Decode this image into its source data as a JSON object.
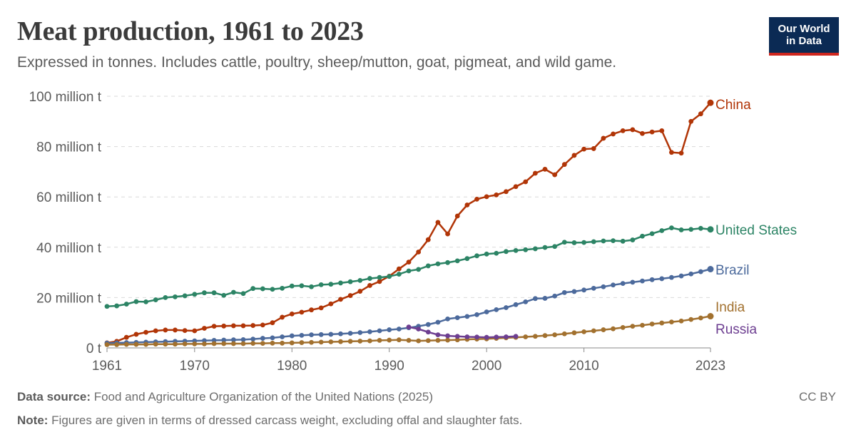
{
  "header": {
    "title": "Meat production, 1961 to 2023",
    "subtitle": "Expressed in tonnes. Includes cattle, poultry, sheep/mutton, goat, pigmeat, and wild game."
  },
  "logo": {
    "line1": "Our World",
    "line2": "in Data",
    "bg_color": "#0b2a54",
    "accent_color": "#ce261e"
  },
  "footer": {
    "source_label": "Data source:",
    "source_text": " Food and Agriculture Organization of the United Nations (2025)",
    "note_label": "Note:",
    "note_text": " Figures are given in terms of dressed carcass weight, excluding offal and slaughter fats.",
    "license": "CC BY"
  },
  "chart_data": {
    "type": "line",
    "xlim": [
      1961,
      2023
    ],
    "ylim": [
      0,
      100
    ],
    "y_unit": "million t",
    "x_ticks": [
      1961,
      1970,
      1980,
      1990,
      2000,
      2010,
      2023
    ],
    "y_ticks": [
      {
        "value": 0,
        "label": "0 t"
      },
      {
        "value": 20,
        "label": "20 million t"
      },
      {
        "value": 40,
        "label": "40 million t"
      },
      {
        "value": 60,
        "label": "60 million t"
      },
      {
        "value": 80,
        "label": "80 million t"
      },
      {
        "value": 100,
        "label": "100 million t"
      }
    ],
    "grid": true,
    "legend": "inline-right",
    "series": [
      {
        "name": "China",
        "color": "#b13507",
        "x": [
          1961,
          1962,
          1963,
          1964,
          1965,
          1966,
          1967,
          1968,
          1969,
          1970,
          1971,
          1972,
          1973,
          1974,
          1975,
          1976,
          1977,
          1978,
          1979,
          1980,
          1981,
          1982,
          1983,
          1984,
          1985,
          1986,
          1987,
          1988,
          1989,
          1990,
          1991,
          1992,
          1993,
          1994,
          1995,
          1996,
          1997,
          1998,
          1999,
          2000,
          2001,
          2002,
          2003,
          2004,
          2005,
          2006,
          2007,
          2008,
          2009,
          2010,
          2011,
          2012,
          2013,
          2014,
          2015,
          2016,
          2017,
          2018,
          2019,
          2020,
          2021,
          2022,
          2023
        ],
        "values": [
          2.0,
          2.6,
          4.2,
          5.4,
          6.2,
          6.8,
          7.1,
          7.1,
          6.9,
          6.8,
          7.8,
          8.6,
          8.7,
          8.8,
          8.8,
          8.9,
          9.1,
          10.0,
          12.2,
          13.5,
          14.2,
          15.1,
          15.9,
          17.5,
          19.3,
          20.8,
          22.5,
          24.8,
          26.4,
          28.5,
          31.4,
          34.1,
          38.1,
          43.0,
          49.9,
          45.3,
          52.4,
          56.8,
          59.1,
          60.1,
          60.8,
          62.1,
          64.1,
          66.0,
          69.4,
          71.0,
          68.8,
          72.9,
          76.5,
          79.0,
          79.2,
          83.3,
          85.0,
          86.3,
          86.7,
          85.2,
          85.8,
          86.3,
          77.7,
          77.4,
          90.0,
          93.0,
          97.4
        ]
      },
      {
        "name": "United States",
        "color": "#2c8465",
        "x": [
          1961,
          1962,
          1963,
          1964,
          1965,
          1966,
          1967,
          1968,
          1969,
          1970,
          1971,
          1972,
          1973,
          1974,
          1975,
          1976,
          1977,
          1978,
          1979,
          1980,
          1981,
          1982,
          1983,
          1984,
          1985,
          1986,
          1987,
          1988,
          1989,
          1990,
          1991,
          1992,
          1993,
          1994,
          1995,
          1996,
          1997,
          1998,
          1999,
          2000,
          2001,
          2002,
          2003,
          2004,
          2005,
          2006,
          2007,
          2008,
          2009,
          2010,
          2011,
          2012,
          2013,
          2014,
          2015,
          2016,
          2017,
          2018,
          2019,
          2020,
          2021,
          2022,
          2023
        ],
        "values": [
          16.5,
          16.7,
          17.4,
          18.4,
          18.3,
          19.1,
          20.0,
          20.3,
          20.7,
          21.3,
          21.9,
          21.9,
          20.9,
          22.1,
          21.6,
          23.6,
          23.5,
          23.3,
          23.7,
          24.6,
          24.7,
          24.3,
          25.1,
          25.3,
          25.8,
          26.3,
          26.8,
          27.6,
          28.0,
          28.4,
          29.3,
          30.6,
          31.2,
          32.6,
          33.4,
          33.9,
          34.6,
          35.5,
          36.6,
          37.3,
          37.6,
          38.3,
          38.7,
          39.0,
          39.4,
          39.9,
          40.3,
          42.0,
          41.8,
          41.9,
          42.2,
          42.5,
          42.6,
          42.4,
          42.9,
          44.4,
          45.4,
          46.6,
          47.7,
          46.9,
          47.1,
          47.5,
          47.1
        ]
      },
      {
        "name": "Brazil",
        "color": "#4c6a9c",
        "x": [
          1961,
          1962,
          1963,
          1964,
          1965,
          1966,
          1967,
          1968,
          1969,
          1970,
          1971,
          1972,
          1973,
          1974,
          1975,
          1976,
          1977,
          1978,
          1979,
          1980,
          1981,
          1982,
          1983,
          1984,
          1985,
          1986,
          1987,
          1988,
          1989,
          1990,
          1991,
          1992,
          1993,
          1994,
          1995,
          1996,
          1997,
          1998,
          1999,
          2000,
          2001,
          2002,
          2003,
          2004,
          2005,
          2006,
          2007,
          2008,
          2009,
          2010,
          2011,
          2012,
          2013,
          2014,
          2015,
          2016,
          2017,
          2018,
          2019,
          2020,
          2021,
          2022,
          2023
        ],
        "values": [
          1.9,
          2.0,
          2.1,
          2.2,
          2.3,
          2.4,
          2.5,
          2.6,
          2.7,
          2.8,
          2.9,
          3.0,
          3.1,
          3.2,
          3.3,
          3.5,
          3.8,
          4.0,
          4.4,
          4.8,
          5.0,
          5.2,
          5.3,
          5.4,
          5.6,
          5.8,
          6.1,
          6.4,
          6.8,
          7.2,
          7.5,
          8.0,
          8.6,
          9.3,
          10.2,
          11.5,
          12.0,
          12.5,
          13.2,
          14.3,
          15.2,
          16.0,
          17.2,
          18.3,
          19.6,
          19.7,
          20.6,
          22.0,
          22.4,
          23.0,
          23.7,
          24.3,
          25.0,
          25.6,
          26.1,
          26.6,
          27.1,
          27.5,
          28.0,
          28.6,
          29.4,
          30.3,
          31.3
        ]
      },
      {
        "name": "India",
        "color": "#a2712f",
        "x": [
          1961,
          1962,
          1963,
          1964,
          1965,
          1966,
          1967,
          1968,
          1969,
          1970,
          1971,
          1972,
          1973,
          1974,
          1975,
          1976,
          1977,
          1978,
          1979,
          1980,
          1981,
          1982,
          1983,
          1984,
          1985,
          1986,
          1987,
          1988,
          1989,
          1990,
          1991,
          1992,
          1993,
          1994,
          1995,
          1996,
          1997,
          1998,
          1999,
          2000,
          2001,
          2002,
          2003,
          2004,
          2005,
          2006,
          2007,
          2008,
          2009,
          2010,
          2011,
          2012,
          2013,
          2014,
          2015,
          2016,
          2017,
          2018,
          2019,
          2020,
          2021,
          2022,
          2023
        ],
        "values": [
          1.3,
          1.3,
          1.4,
          1.4,
          1.4,
          1.5,
          1.5,
          1.5,
          1.6,
          1.6,
          1.6,
          1.7,
          1.7,
          1.7,
          1.7,
          1.8,
          1.8,
          1.9,
          1.9,
          2.0,
          2.1,
          2.2,
          2.3,
          2.4,
          2.5,
          2.6,
          2.7,
          2.8,
          3.0,
          3.1,
          3.2,
          3.0,
          2.8,
          2.9,
          3.0,
          3.1,
          3.2,
          3.4,
          3.5,
          3.6,
          3.8,
          4.0,
          4.2,
          4.4,
          4.6,
          4.9,
          5.2,
          5.6,
          6.0,
          6.4,
          6.8,
          7.2,
          7.6,
          8.1,
          8.6,
          9.0,
          9.5,
          9.9,
          10.3,
          10.7,
          11.3,
          11.9,
          12.6
        ]
      },
      {
        "name": "Russia",
        "color": "#6d3e91",
        "x": [
          1992,
          1993,
          1994,
          1995,
          1996,
          1997,
          1998,
          1999,
          2000,
          2001,
          2002,
          2003
        ],
        "values": [
          8.3,
          7.5,
          6.3,
          5.2,
          4.8,
          4.6,
          4.4,
          4.3,
          4.2,
          4.3,
          4.4,
          4.6
        ]
      }
    ]
  }
}
